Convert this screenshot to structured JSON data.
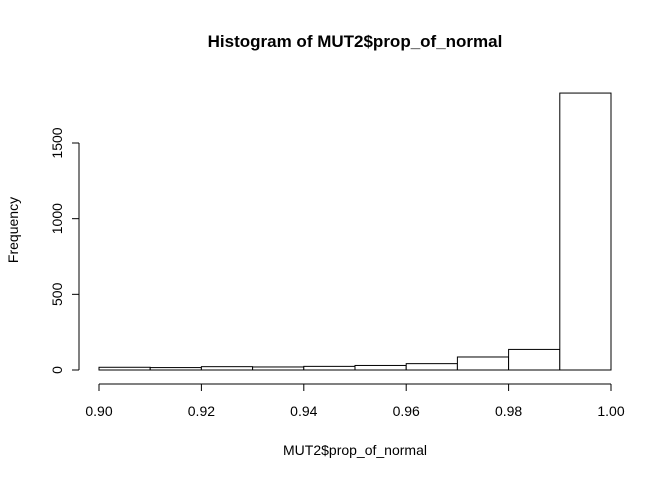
{
  "chart_data": {
    "type": "bar",
    "title": "Histogram of MUT2$prop_of_normal",
    "xlabel": "MUT2$prop_of_normal",
    "ylabel": "Frequency",
    "bin_edges": [
      0.9,
      0.91,
      0.92,
      0.93,
      0.94,
      0.95,
      0.96,
      0.97,
      0.98,
      0.99,
      1.0
    ],
    "values": [
      18,
      16,
      22,
      20,
      24,
      30,
      42,
      86,
      136,
      1830
    ],
    "xlim": [
      0.9,
      1.0
    ],
    "ylim": [
      0,
      1830
    ],
    "x_ticks": [
      "0.90",
      "0.92",
      "0.94",
      "0.96",
      "0.98",
      "1.00"
    ],
    "y_ticks": [
      "0",
      "500",
      "1000",
      "1500"
    ],
    "grid": false,
    "legend": "none",
    "bar_fill": "#ffffff",
    "bar_stroke": "#000000"
  }
}
